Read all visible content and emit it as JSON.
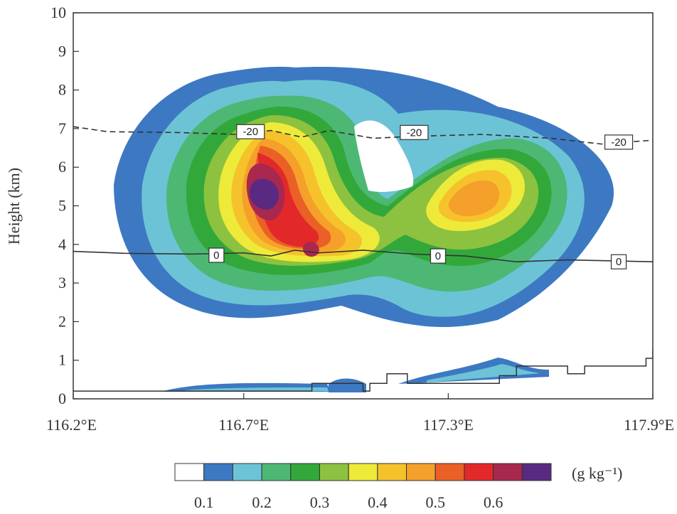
{
  "chart_data": {
    "type": "contour",
    "title": "",
    "ylabel": "Height (km)",
    "xlabel": "",
    "ylim": [
      0,
      10
    ],
    "yticks": [
      0,
      1,
      2,
      3,
      4,
      5,
      6,
      7,
      8,
      9,
      10
    ],
    "xlim": [
      116.2,
      117.9
    ],
    "xticks": [
      {
        "value": 116.2,
        "label": "116.2°E"
      },
      {
        "value": 116.7,
        "label": "116.7°E"
      },
      {
        "value": 117.3,
        "label": "117.3°E"
      },
      {
        "value": 117.9,
        "label": "117.9°E"
      }
    ],
    "colorbar": {
      "unit": "(g kg⁻¹)",
      "colors": [
        "#ffffff",
        "#3d79c2",
        "#6cc3d6",
        "#4cb874",
        "#33a83a",
        "#8cc23f",
        "#eeea3a",
        "#f5c22c",
        "#f5a02a",
        "#ea6026",
        "#e3282a",
        "#a8284e",
        "#5a2a82"
      ],
      "labels": [
        {
          "text": "0.1",
          "index": 1
        },
        {
          "text": "0.2",
          "index": 3
        },
        {
          "text": "0.3",
          "index": 5
        },
        {
          "text": "0.4",
          "index": 7
        },
        {
          "text": "0.5",
          "index": 9
        },
        {
          "text": "0.6",
          "index": 11
        }
      ]
    },
    "isotherms": [
      {
        "label": "0",
        "style": "solid",
        "points": [
          [
            116.2,
            3.82
          ],
          [
            116.35,
            3.77
          ],
          [
            116.55,
            3.75
          ],
          [
            116.7,
            3.78
          ],
          [
            116.78,
            3.7
          ],
          [
            116.85,
            3.85
          ],
          [
            116.92,
            3.78
          ],
          [
            117.05,
            3.85
          ],
          [
            117.2,
            3.75
          ],
          [
            117.35,
            3.7
          ],
          [
            117.5,
            3.55
          ],
          [
            117.65,
            3.6
          ],
          [
            117.9,
            3.55
          ]
        ],
        "label_positions": [
          [
            116.62,
            3.72
          ],
          [
            117.27,
            3.7
          ],
          [
            117.8,
            3.55
          ]
        ]
      },
      {
        "label": "-20",
        "style": "dashed",
        "points": [
          [
            116.2,
            7.05
          ],
          [
            116.3,
            6.92
          ],
          [
            116.5,
            6.9
          ],
          [
            116.68,
            6.85
          ],
          [
            116.78,
            6.95
          ],
          [
            116.87,
            6.78
          ],
          [
            116.95,
            6.95
          ],
          [
            117.08,
            6.75
          ],
          [
            117.2,
            6.8
          ],
          [
            117.4,
            6.85
          ],
          [
            117.6,
            6.75
          ],
          [
            117.75,
            6.6
          ],
          [
            117.9,
            6.7
          ]
        ],
        "label_positions": [
          [
            116.72,
            6.92
          ],
          [
            117.2,
            6.9
          ],
          [
            117.8,
            6.65
          ]
        ]
      }
    ],
    "terrain": [
      [
        116.2,
        0.2
      ],
      [
        116.9,
        0.2
      ],
      [
        116.9,
        0.4
      ],
      [
        117.05,
        0.4
      ],
      [
        117.05,
        0.2
      ],
      [
        117.07,
        0.2
      ],
      [
        117.07,
        0.4
      ],
      [
        117.12,
        0.4
      ],
      [
        117.12,
        0.65
      ],
      [
        117.18,
        0.65
      ],
      [
        117.18,
        0.4
      ],
      [
        117.45,
        0.4
      ],
      [
        117.45,
        0.6
      ],
      [
        117.5,
        0.6
      ],
      [
        117.5,
        0.85
      ],
      [
        117.65,
        0.85
      ],
      [
        117.65,
        0.65
      ],
      [
        117.7,
        0.65
      ],
      [
        117.7,
        0.85
      ],
      [
        117.88,
        0.85
      ],
      [
        117.88,
        1.05
      ],
      [
        117.9,
        1.05
      ],
      [
        117.9,
        1.3
      ]
    ],
    "features": {
      "cloud_left_core": {
        "x_center": 116.69,
        "z_center": 5.4,
        "max_value": 0.6
      },
      "cloud_right_core": {
        "x_center": 117.37,
        "z_center": 5.4,
        "max_value": 0.45
      },
      "cloud_top_km": 8.5,
      "cloud_base_km": 1.9
    }
  }
}
